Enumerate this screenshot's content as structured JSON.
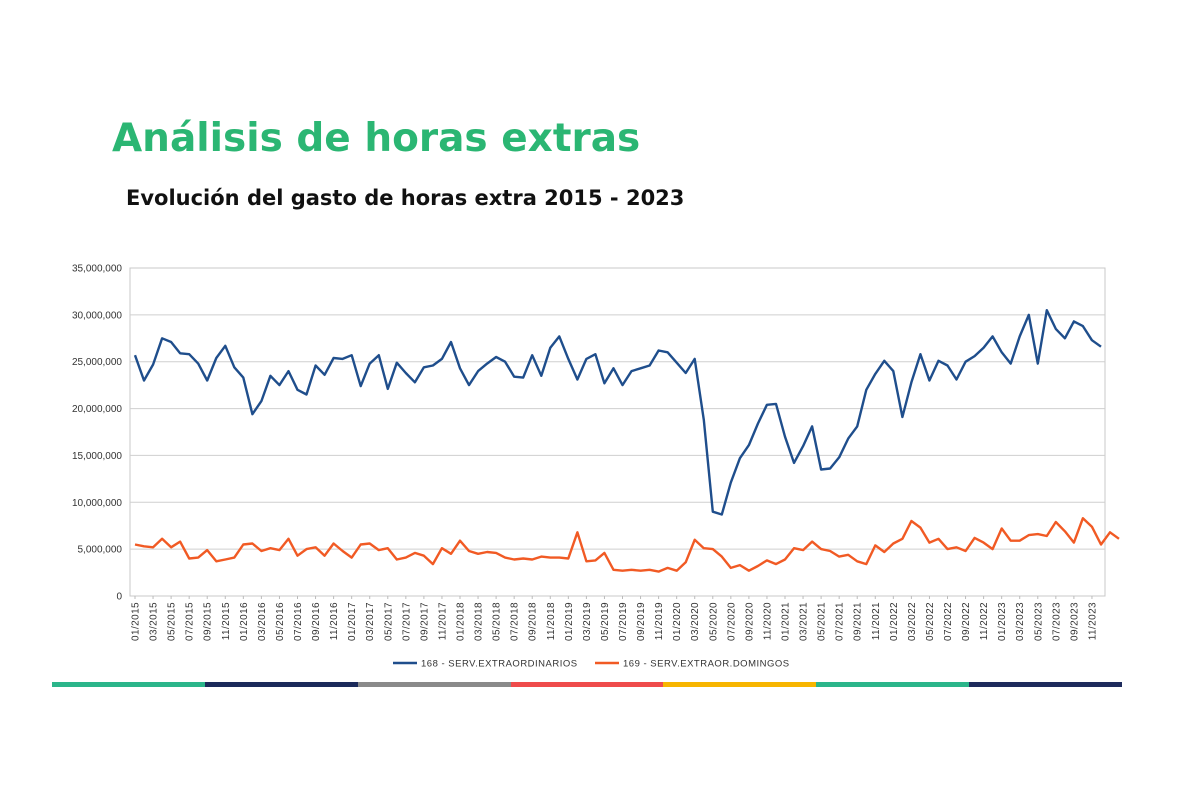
{
  "page": {
    "title": "Análisis de horas extras",
    "subtitle": "Evolución del gasto de horas extra 2015 - 2023",
    "accent_color": "#2bb673"
  },
  "chart_data": {
    "type": "line",
    "title": "Evolución del gasto de horas extra 2015 - 2023",
    "xlabel": "",
    "ylabel": "",
    "ylim": [
      0,
      35000000
    ],
    "y_ticks": [
      0,
      5000000,
      10000000,
      15000000,
      20000000,
      25000000,
      30000000,
      35000000
    ],
    "y_tick_labels": [
      "0",
      "5,000,000",
      "10,000,000",
      "15,000,000",
      "20,000,000",
      "25,000,000",
      "30,000,000",
      "35,000,000"
    ],
    "grid": true,
    "legend_position": "bottom",
    "x_tick_labels": [
      "01/2015",
      "03/2015",
      "05/2015",
      "07/2015",
      "09/2015",
      "11/2015",
      "01/2016",
      "03/2016",
      "05/2016",
      "07/2016",
      "09/2016",
      "11/2016",
      "01/2017",
      "03/2017",
      "05/2017",
      "07/2017",
      "09/2017",
      "11/2017",
      "01/2018",
      "03/2018",
      "05/2018",
      "07/2018",
      "09/2018",
      "11/2018",
      "01/2019",
      "03/2019",
      "05/2019",
      "07/2019",
      "09/2019",
      "11/2019",
      "01/2020",
      "03/2020",
      "05/2020",
      "07/2020",
      "09/2020",
      "11/2020",
      "01/2021",
      "03/2021",
      "05/2021",
      "07/2021",
      "09/2021",
      "11/2021",
      "01/2022",
      "03/2022",
      "05/2022",
      "07/2022",
      "09/2022",
      "11/2022",
      "01/2023",
      "03/2023",
      "05/2023",
      "07/2023",
      "09/2023",
      "11/2023"
    ],
    "series": [
      {
        "name": "168 - SERV.EXTRAORDINARIOS",
        "color": "#1f4e8c",
        "values": [
          25700000,
          23000000,
          24700000,
          27500000,
          27100000,
          25900000,
          25800000,
          24800000,
          23000000,
          25400000,
          26700000,
          24400000,
          23300000,
          19400000,
          20800000,
          23500000,
          22500000,
          24000000,
          22000000,
          21500000,
          24600000,
          23600000,
          25400000,
          25300000,
          25700000,
          22400000,
          24800000,
          25700000,
          22100000,
          24900000,
          23800000,
          22800000,
          24400000,
          24600000,
          25300000,
          27100000,
          24300000,
          22500000,
          24000000,
          24800000,
          25500000,
          25000000,
          23400000,
          23300000,
          25700000,
          23500000,
          26500000,
          27700000,
          25300000,
          23100000,
          25300000,
          25800000,
          22700000,
          24300000,
          22500000,
          24000000,
          24300000,
          24600000,
          26200000,
          26000000,
          24900000,
          23800000,
          25300000,
          18800000,
          9000000,
          8700000,
          12100000,
          14700000,
          16100000,
          18400000,
          20400000,
          20500000,
          17000000,
          14200000,
          16000000,
          18100000,
          13500000,
          13600000,
          14800000,
          16800000,
          18100000,
          22000000,
          23700000,
          25100000,
          24000000,
          19100000,
          22800000,
          25800000,
          23000000,
          25100000,
          24600000,
          23100000,
          25000000,
          25600000,
          26500000,
          27700000,
          26000000,
          24800000,
          27700000,
          30000000,
          24800000,
          30500000,
          28500000,
          27500000,
          29300000,
          28800000,
          27300000,
          26600000
        ]
      },
      {
        "name": "169 - SERV.EXTRAOR.DOMINGOS",
        "color": "#f15a24",
        "values": [
          5500000,
          5300000,
          5200000,
          6100000,
          5200000,
          5800000,
          4000000,
          4100000,
          4900000,
          3700000,
          3900000,
          4100000,
          5500000,
          5600000,
          4800000,
          5100000,
          4900000,
          6100000,
          4300000,
          5000000,
          5200000,
          4300000,
          5600000,
          4800000,
          4100000,
          5500000,
          5600000,
          4900000,
          5100000,
          3900000,
          4100000,
          4600000,
          4300000,
          3400000,
          5100000,
          4500000,
          5900000,
          4800000,
          4500000,
          4700000,
          4600000,
          4100000,
          3900000,
          4000000,
          3900000,
          4200000,
          4100000,
          4100000,
          4000000,
          6800000,
          3700000,
          3800000,
          4600000,
          2800000,
          2700000,
          2800000,
          2700000,
          2800000,
          2600000,
          3000000,
          2700000,
          3600000,
          6000000,
          5100000,
          5000000,
          4200000,
          3000000,
          3300000,
          2700000,
          3200000,
          3800000,
          3400000,
          3900000,
          5100000,
          4900000,
          5800000,
          5000000,
          4800000,
          4200000,
          4400000,
          3700000,
          3400000,
          5400000,
          4700000,
          5600000,
          6100000,
          8000000,
          7300000,
          5700000,
          6100000,
          5000000,
          5200000,
          4800000,
          6200000,
          5700000,
          5000000,
          7200000,
          5900000,
          5900000,
          6500000,
          6600000,
          6400000,
          7900000,
          6900000,
          5700000,
          8300000,
          7400000,
          5500000,
          6800000,
          6100000
        ]
      }
    ]
  },
  "footer_colors": [
    "#2bb58a",
    "#1b2a5a",
    "#8a8a8a",
    "#ef4b4b",
    "#f7b500",
    "#2bb58a",
    "#1e2b5c"
  ]
}
